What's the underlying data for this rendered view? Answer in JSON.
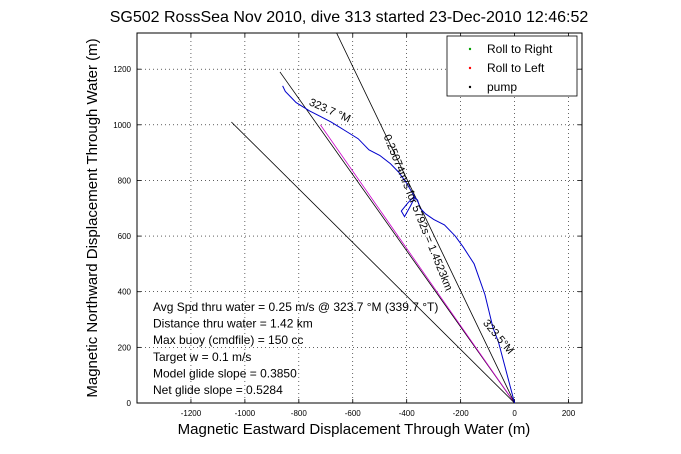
{
  "chart_data": {
    "type": "line",
    "title": "SG502 RossSea Nov 2010, dive 313 started 23-Dec-2010 12:46:52",
    "xlabel": "Magnetic Eastward Displacement Through Water (m)",
    "ylabel": "Magnetic Northward Displacement Through Water (m)",
    "xlim": [
      -1400,
      250
    ],
    "ylim": [
      0,
      1330
    ],
    "xticks": [
      -1200,
      -1000,
      -800,
      -600,
      -400,
      -200,
      0,
      200
    ],
    "yticks": [
      0,
      200,
      400,
      600,
      800,
      1000,
      1200
    ],
    "grid": true,
    "legend": {
      "placement": "top-right",
      "entries": [
        {
          "label": "Roll to Right",
          "color": "#00a000",
          "marker": "."
        },
        {
          "label": "Roll to Left",
          "color": "#ff0000",
          "marker": "."
        },
        {
          "label": "pump",
          "color": "#000000",
          "marker": "."
        }
      ]
    },
    "track": {
      "color": "#0000cc",
      "x": [
        0,
        -30,
        -60,
        -80,
        -110,
        -150,
        -190,
        -220,
        -260,
        -300,
        -330,
        -350,
        -360,
        -375,
        -395,
        -420,
        -408,
        -385,
        -370,
        -400,
        -430,
        -460,
        -500,
        -540,
        -580,
        -630,
        -680,
        -720,
        -760,
        -810,
        -830,
        -850,
        -860
      ],
      "y": [
        0,
        110,
        220,
        270,
        390,
        500,
        560,
        600,
        640,
        660,
        680,
        700,
        730,
        740,
        720,
        690,
        670,
        710,
        740,
        790,
        830,
        860,
        890,
        910,
        950,
        980,
        1010,
        1030,
        1050,
        1080,
        1100,
        1120,
        1140
      ]
    },
    "lines": [
      {
        "name": "heading",
        "color": "#000000",
        "x": [
          0,
          -870
        ],
        "y": [
          0,
          1190
        ]
      },
      {
        "name": "glide",
        "color": "#cc00cc",
        "x": [
          0,
          -720
        ],
        "y": [
          0,
          1000
        ]
      },
      {
        "name": "upper",
        "color": "#000000",
        "x": [
          0,
          -660
        ],
        "y": [
          0,
          1330
        ]
      },
      {
        "name": "lower",
        "color": "#000000",
        "x": [
          0,
          -1050
        ],
        "y": [
          0,
          1010
        ]
      }
    ],
    "annotations": [
      {
        "text": "323.7 °M",
        "x": -690,
        "y": 1040,
        "angle": 24
      },
      {
        "text": "0.25074m/s for 5792s = 1.4523km",
        "x": -370,
        "y": 680,
        "angle": 68
      },
      {
        "text": "323.5°M",
        "x": -70,
        "y": 230,
        "angle": 50
      }
    ],
    "stats": [
      "Avg Spd thru water =  0.25 m/s @ 323.7 °M (339.7 °T)",
      "Distance thru water =  1.42 km",
      "Max buoy (cmdfile) = 150 cc",
      "Target w = 0.1 m/s",
      "Model glide slope = 0.3850",
      "Net glide slope = 0.5284"
    ]
  }
}
